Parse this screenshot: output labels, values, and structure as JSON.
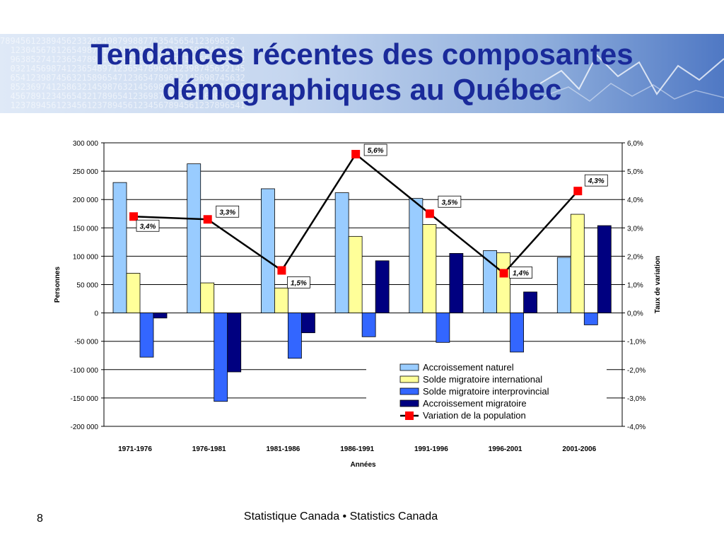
{
  "slide": {
    "title_line1": "Tendances récentes des composantes",
    "title_line2": "démographiques au Québec",
    "page_number": "8",
    "footer": "Statistique Canada • Statistics Canada"
  },
  "chart_data": {
    "type": "bar",
    "xlabel": "Années",
    "ylabel": "Personnes",
    "y2label": "Taux de variation",
    "ylim": [
      -200000,
      300000
    ],
    "y2lim": [
      -4.0,
      6.0
    ],
    "yticks": [
      {
        "v": 300000,
        "t": "300 000"
      },
      {
        "v": 250000,
        "t": "250 000"
      },
      {
        "v": 200000,
        "t": "200 000"
      },
      {
        "v": 150000,
        "t": "150 000"
      },
      {
        "v": 100000,
        "t": "100 000"
      },
      {
        "v": 50000,
        "t": "50 000"
      },
      {
        "v": 0,
        "t": "0"
      },
      {
        "v": -50000,
        "t": "-50 000"
      },
      {
        "v": -100000,
        "t": "-100 000"
      },
      {
        "v": -150000,
        "t": "-150 000"
      },
      {
        "v": -200000,
        "t": "-200 000"
      }
    ],
    "y2ticks": [
      {
        "v": 6.0,
        "t": "6,0%"
      },
      {
        "v": 5.0,
        "t": "5,0%"
      },
      {
        "v": 4.0,
        "t": "4,0%"
      },
      {
        "v": 3.0,
        "t": "3,0%"
      },
      {
        "v": 2.0,
        "t": "2,0%"
      },
      {
        "v": 1.0,
        "t": "1,0%"
      },
      {
        "v": 0.0,
        "t": "0,0%"
      },
      {
        "v": -1.0,
        "t": "-1,0%"
      },
      {
        "v": -2.0,
        "t": "-2,0%"
      },
      {
        "v": -3.0,
        "t": "-3,0%"
      },
      {
        "v": -4.0,
        "t": "-4,0%"
      }
    ],
    "categories": [
      "1971-1976",
      "1976-1981",
      "1981-1986",
      "1986-1991",
      "1991-1996",
      "1996-2001",
      "2001-2006"
    ],
    "series": [
      {
        "name": "Accroissement naturel",
        "color": "#99ccff",
        "values": [
          230000,
          263000,
          219000,
          212000,
          202000,
          110000,
          98000
        ]
      },
      {
        "name": "Solde migratoire international",
        "color": "#ffff99",
        "values": [
          70000,
          53000,
          44000,
          135000,
          156000,
          106000,
          174000
        ]
      },
      {
        "name": "Solde migratoire interprovincial",
        "color": "#3366ff",
        "values": [
          -78000,
          -156000,
          -80000,
          -42000,
          -52000,
          -69000,
          -21000
        ]
      },
      {
        "name": "Accroissement migratoire",
        "color": "#000080",
        "values": [
          -9000,
          -104000,
          -35000,
          92000,
          105000,
          37000,
          154000
        ]
      }
    ],
    "line": {
      "name": "Variation de la population",
      "color": "#000000",
      "marker_color": "#ff0000",
      "values": [
        3.4,
        3.3,
        1.5,
        5.6,
        3.5,
        1.4,
        4.3
      ],
      "labels": [
        "3,4%",
        "3,3%",
        "1,5%",
        "5,6%",
        "3,5%",
        "1,4%",
        "4,3%"
      ]
    },
    "legend_position": "bottom-right"
  }
}
